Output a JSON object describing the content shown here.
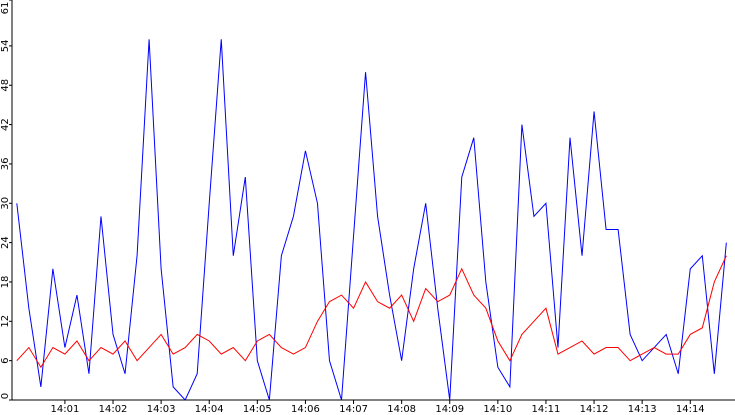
{
  "chart_data": {
    "type": "line",
    "x": [
      840,
      840.25,
      840.5,
      840.75,
      841,
      841.25,
      841.5,
      841.75,
      842,
      842.25,
      842.5,
      842.75,
      843,
      843.25,
      843.5,
      843.75,
      844,
      844.25,
      844.5,
      844.75,
      845,
      845.25,
      845.5,
      845.75,
      846,
      846.25,
      846.5,
      846.75,
      847,
      847.25,
      847.5,
      847.75,
      848,
      848.25,
      848.5,
      848.75,
      849,
      849.25,
      849.5,
      849.75,
      850,
      850.25,
      850.5,
      850.75,
      851,
      851.25,
      851.5,
      851.75,
      852,
      852.25,
      852.5,
      852.75,
      853,
      853.25,
      853.5,
      853.75,
      854,
      854.25,
      854.5,
      854.75
    ],
    "series": [
      {
        "color": "#0000ff",
        "values": [
          30,
          14,
          2,
          20,
          8,
          16,
          4,
          28,
          10,
          4,
          22,
          55,
          20,
          2,
          0,
          4,
          30,
          55,
          22,
          34,
          6,
          0,
          22,
          28,
          38,
          30,
          6,
          0,
          25,
          50,
          28,
          16,
          6,
          20,
          30,
          14,
          0,
          34,
          40,
          18,
          5,
          2,
          42,
          28,
          30,
          8,
          40,
          22,
          44,
          26,
          26,
          10,
          6,
          8,
          10,
          4,
          20,
          22,
          4,
          24
        ]
      },
      {
        "color": "#ff0000",
        "values": [
          6,
          8,
          5,
          8,
          7,
          9,
          6,
          8,
          7,
          9,
          6,
          8,
          10,
          7,
          8,
          10,
          9,
          7,
          8,
          6,
          9,
          10,
          8,
          7,
          8,
          12,
          15,
          16,
          14,
          18,
          15,
          14,
          16,
          12,
          17,
          15,
          16,
          20,
          16,
          14,
          9,
          6,
          10,
          12,
          14,
          7,
          8,
          9,
          7,
          8,
          8,
          6,
          7,
          8,
          7,
          7,
          10,
          11,
          18,
          22
        ]
      }
    ],
    "xlim": [
      839.9,
      854.93
    ],
    "xticks": [
      {
        "value": 841,
        "label": "14:01"
      },
      {
        "value": 842,
        "label": "14:02"
      },
      {
        "value": 843,
        "label": "14:03"
      },
      {
        "value": 844,
        "label": "14:04"
      },
      {
        "value": 845,
        "label": "14:05"
      },
      {
        "value": 846,
        "label": "14:06"
      },
      {
        "value": 847,
        "label": "14:07"
      },
      {
        "value": 848,
        "label": "14:08"
      },
      {
        "value": 849,
        "label": "14:09"
      },
      {
        "value": 850,
        "label": "14:10"
      },
      {
        "value": 851,
        "label": "14:11"
      },
      {
        "value": 852,
        "label": "14:12"
      },
      {
        "value": 853,
        "label": "14:13"
      },
      {
        "value": 854,
        "label": "14:14"
      }
    ],
    "ylim": [
      0,
      61
    ],
    "yticks": [
      0,
      6,
      12,
      18,
      24,
      30,
      36,
      42,
      48,
      54,
      61
    ]
  }
}
